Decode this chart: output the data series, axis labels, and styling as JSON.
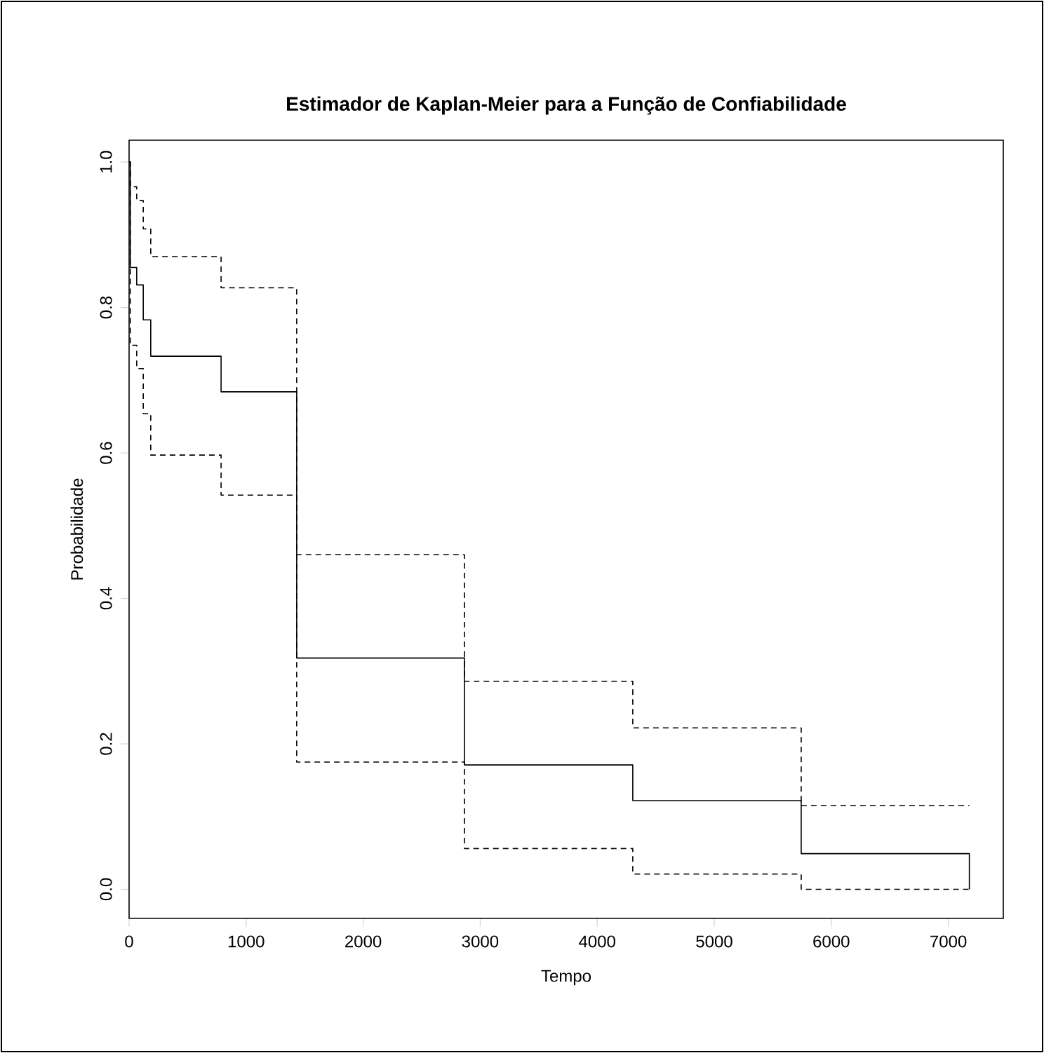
{
  "chart_data": {
    "type": "step",
    "title": "Estimador de Kaplan-Meier para a Função de Confiabilidade",
    "xlabel": "Tempo",
    "ylabel": "Probabilidade",
    "x": [
      0,
      10,
      65,
      121,
      185,
      786,
      1432,
      2866,
      4304,
      5743,
      7180
    ],
    "series": [
      {
        "color": "#000000",
        "line_style": "solid",
        "values": [
          1.0,
          0.855,
          0.831,
          0.783,
          0.733,
          0.684,
          0.318,
          0.171,
          0.122,
          0.049,
          0.0
        ]
      },
      {
        "color": "#000000",
        "line_style": "dashed",
        "values": [
          1.0,
          0.966,
          0.947,
          0.908,
          0.87,
          0.827,
          0.46,
          0.286,
          0.222,
          0.115,
          0.115
        ]
      },
      {
        "color": "#000000",
        "line_style": "dashed",
        "values": [
          1.0,
          0.748,
          0.716,
          0.654,
          0.597,
          0.542,
          0.175,
          0.056,
          0.021,
          0.0,
          0.0
        ]
      }
    ],
    "xlim": [
      0,
      7470
    ],
    "ylim": [
      -0.04,
      1.03
    ],
    "xticks": [
      0,
      1000,
      2000,
      3000,
      4000,
      5000,
      6000,
      7000
    ],
    "yticks": [
      {
        "value": 0,
        "label": "0.0"
      },
      {
        "value": 0.2,
        "label": "0.2"
      },
      {
        "value": 0.4,
        "label": "0.4"
      },
      {
        "value": 0.6,
        "label": "0.6"
      },
      {
        "value": 0.8,
        "label": "0.8"
      },
      {
        "value": 1,
        "label": "1.0"
      }
    ],
    "tick_labels": "xy"
  }
}
